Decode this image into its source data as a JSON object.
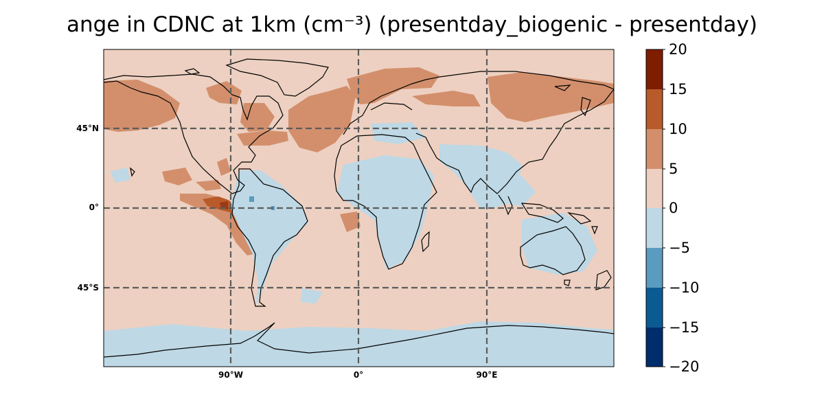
{
  "title": "ange in CDNC at 1km (cm⁻³) (presentday_biogenic - presentday)",
  "map": {
    "lat_labels": [
      "45°N",
      "0°",
      "45°S"
    ],
    "lon_labels": [
      "90°W",
      "0°",
      "90°E"
    ]
  },
  "colorbar": {
    "tick_labels": [
      "20",
      "15",
      "10",
      "5",
      "0",
      "−5",
      "−10",
      "−15",
      "−20"
    ],
    "colors": [
      "#7f1d00",
      "#b95a2a",
      "#d38f6c",
      "#edd0c1",
      "#bed8e5",
      "#5a9bc0",
      "#0b5b93",
      "#002d6b"
    ]
  },
  "colors": {
    "background": "#edd0c1",
    "negative_area": "#bed8e5",
    "positive_area": "#d38f6c",
    "strong_positive": "#b95a2a",
    "coastline": "#000000",
    "gridline": "#5c5c5c"
  }
}
